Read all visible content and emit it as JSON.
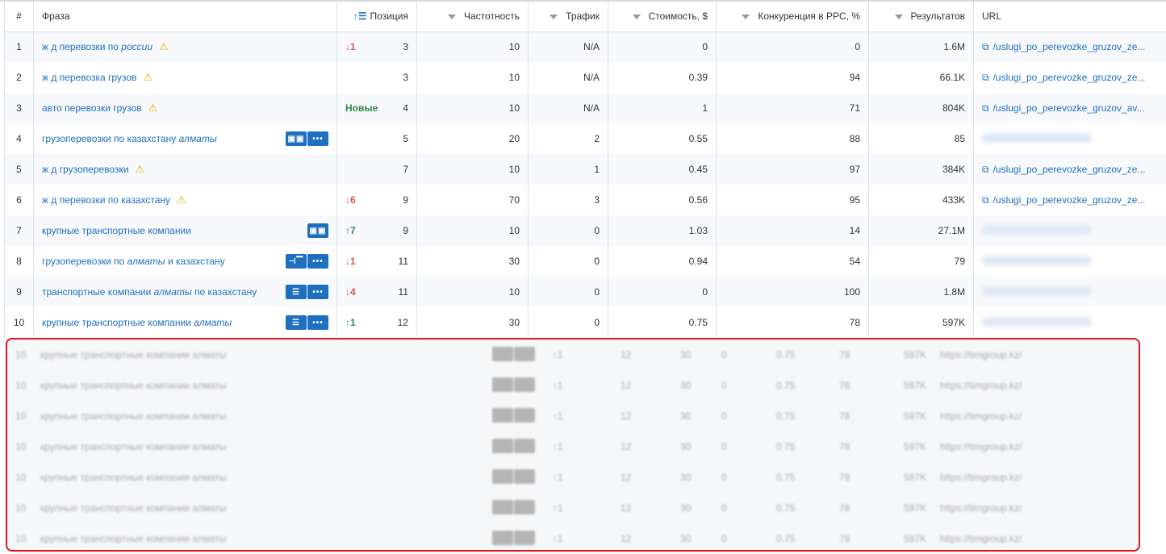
{
  "headers": {
    "num": "#",
    "phrase": "Фраза",
    "position": "Позиция",
    "frequency": "Частотность",
    "traffic": "Трафик",
    "cost": "Стоимость, $",
    "competition": "Конкуренция в PPC, %",
    "results": "Результатов",
    "url": "URL"
  },
  "colors": {
    "link": "#1e6fbf",
    "down": "#d9534f",
    "up": "#2e8b46",
    "highlight_border": "#e8141c"
  },
  "rows": [
    {
      "n": "1",
      "p1": "ж д перевозки по ",
      "p2": "россии",
      "p3": "",
      "warn": true,
      "btns": [],
      "ch": "↓1",
      "dir": "dn",
      "pos": "3",
      "freq": "10",
      "traffic": "N/A",
      "cost": "0",
      "comp": "0",
      "res": "1.6M",
      "url": "/uslugi_po_perevozke_gruzov_ze..."
    },
    {
      "n": "2",
      "p1": "ж д перевозка грузов",
      "p2": "",
      "p3": "",
      "warn": true,
      "btns": [],
      "ch": "",
      "dir": "",
      "pos": "3",
      "freq": "10",
      "traffic": "N/A",
      "cost": "0.39",
      "comp": "94",
      "res": "66.1K",
      "url": "/uslugi_po_perevozke_gruzov_ze..."
    },
    {
      "n": "3",
      "p1": "авто перевозки грузов",
      "p2": "",
      "p3": "",
      "warn": true,
      "btns": [],
      "ch": "Новые",
      "dir": "new",
      "pos": "4",
      "freq": "10",
      "traffic": "N/A",
      "cost": "1",
      "comp": "71",
      "res": "804K",
      "url": "/uslugi_po_perevozke_gruzov_av..."
    },
    {
      "n": "4",
      "p1": "грузоперевозки по казахстану ",
      "p2": "алматы",
      "p3": "",
      "warn": false,
      "btns": [
        "images",
        "more"
      ],
      "ch": "",
      "dir": "",
      "pos": "5",
      "freq": "20",
      "traffic": "2",
      "cost": "0.55",
      "comp": "88",
      "res": "85",
      "url": ""
    },
    {
      "n": "5",
      "p1": "ж д грузоперевозки",
      "p2": "",
      "p3": "",
      "warn": true,
      "btns": [],
      "ch": "",
      "dir": "",
      "pos": "7",
      "freq": "10",
      "traffic": "1",
      "cost": "0.45",
      "comp": "97",
      "res": "384K",
      "url": "/uslugi_po_perevozke_gruzov_ze..."
    },
    {
      "n": "6",
      "p1": "ж д перевозки по казахстану",
      "p2": "",
      "p3": "",
      "warn": true,
      "btns": [],
      "ch": "↓6",
      "dir": "dn",
      "pos": "9",
      "freq": "70",
      "traffic": "3",
      "cost": "0.56",
      "comp": "95",
      "res": "433K",
      "url": "/uslugi_po_perevozke_gruzov_ze..."
    },
    {
      "n": "7",
      "p1": "крупные транспортные компании",
      "p2": "",
      "p3": "",
      "warn": false,
      "btns": [
        "images"
      ],
      "ch": "↑7",
      "dir": "up",
      "pos": "9",
      "freq": "10",
      "traffic": "0",
      "cost": "1.03",
      "comp": "14",
      "res": "27.1M",
      "url": ""
    },
    {
      "n": "8",
      "p1": "грузоперевозки по ",
      "p2": "алматы",
      "p3": " и казахстану",
      "warn": false,
      "btns": [
        "sitelinks",
        "more"
      ],
      "ch": "↓1",
      "dir": "dn",
      "pos": "11",
      "freq": "30",
      "traffic": "0",
      "cost": "0.94",
      "comp": "54",
      "res": "79",
      "url": ""
    },
    {
      "n": "9",
      "p1": "транспортные компании ",
      "p2": "алматы",
      "p3": " по казахстану",
      "warn": false,
      "btns": [
        "list",
        "more"
      ],
      "ch": "↓4",
      "dir": "dn",
      "pos": "11",
      "freq": "10",
      "traffic": "0",
      "cost": "0",
      "comp": "100",
      "res": "1.8M",
      "url": ""
    },
    {
      "n": "10",
      "p1": "крупные транспортные компании ",
      "p2": "алматы",
      "p3": "",
      "warn": false,
      "btns": [
        "list",
        "more"
      ],
      "ch": "↑1",
      "dir": "up",
      "pos": "12",
      "freq": "30",
      "traffic": "0",
      "cost": "0.75",
      "comp": "78",
      "res": "597K",
      "url": ""
    }
  ],
  "blurred_row": {
    "n": "10",
    "phrase": "крупные транспортные компании алматы",
    "ch": "↑1",
    "pos": "12",
    "freq": "30",
    "traffic": "0",
    "cost": "0.75",
    "comp": "78",
    "res": "597K",
    "url": "https://timgroup.kz/"
  },
  "blurred_count": 7
}
